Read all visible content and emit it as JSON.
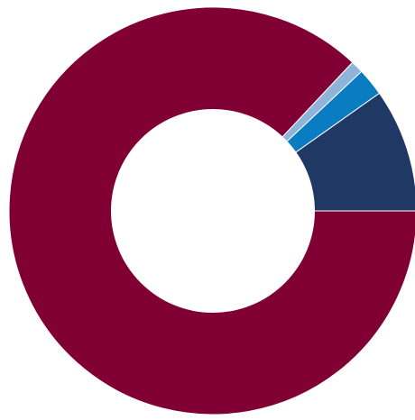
{
  "chart_data": {
    "type": "pie",
    "variant": "donut",
    "legend": "none",
    "labels_shown": false,
    "slices": [
      {
        "value": 87.0,
        "color": "#800033"
      },
      {
        "value": 1.0,
        "color": "#8FB3D9"
      },
      {
        "value": 2.2,
        "color": "#0A7CC2"
      },
      {
        "value": 9.8,
        "color": "#1F3864"
      }
    ]
  }
}
